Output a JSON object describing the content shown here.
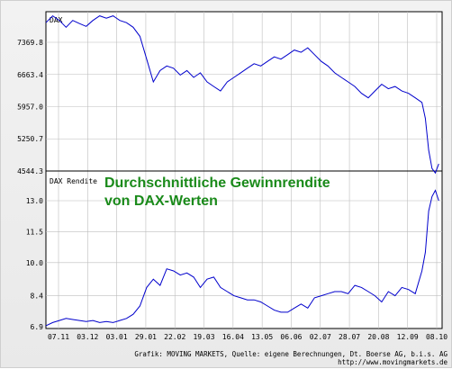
{
  "chart_data": {
    "type": "line",
    "panels": [
      {
        "name": "DAX",
        "label": "DAX",
        "y_ticks": [
          "7369.8",
          "6663.4",
          "5957.0",
          "5250.7",
          "4544.3"
        ],
        "ylim": [
          4544.3,
          8000
        ],
        "series": [
          {
            "name": "DAX",
            "color": "#0000cc",
            "points": [
              [
                0,
                7800
              ],
              [
                2,
                7950
              ],
              [
                4,
                7850
              ],
              [
                6,
                7700
              ],
              [
                8,
                7850
              ],
              [
                10,
                7780
              ],
              [
                12,
                7720
              ],
              [
                14,
                7850
              ],
              [
                16,
                7950
              ],
              [
                18,
                7900
              ],
              [
                20,
                7950
              ],
              [
                22,
                7850
              ],
              [
                24,
                7800
              ],
              [
                26,
                7700
              ],
              [
                28,
                7500
              ],
              [
                30,
                7000
              ],
              [
                32,
                6500
              ],
              [
                34,
                6750
              ],
              [
                36,
                6850
              ],
              [
                38,
                6800
              ],
              [
                40,
                6650
              ],
              [
                42,
                6750
              ],
              [
                44,
                6600
              ],
              [
                46,
                6700
              ],
              [
                48,
                6500
              ],
              [
                50,
                6400
              ],
              [
                52,
                6300
              ],
              [
                54,
                6500
              ],
              [
                56,
                6600
              ],
              [
                58,
                6700
              ],
              [
                60,
                6800
              ],
              [
                62,
                6900
              ],
              [
                64,
                6850
              ],
              [
                66,
                6950
              ],
              [
                68,
                7050
              ],
              [
                70,
                7000
              ],
              [
                72,
                7100
              ],
              [
                74,
                7200
              ],
              [
                76,
                7150
              ],
              [
                78,
                7250
              ],
              [
                80,
                7100
              ],
              [
                82,
                6950
              ],
              [
                84,
                6850
              ],
              [
                86,
                6700
              ],
              [
                88,
                6600
              ],
              [
                90,
                6500
              ],
              [
                92,
                6400
              ],
              [
                94,
                6250
              ],
              [
                96,
                6150
              ],
              [
                98,
                6300
              ],
              [
                100,
                6450
              ],
              [
                102,
                6350
              ],
              [
                104,
                6400
              ],
              [
                106,
                6300
              ],
              [
                108,
                6250
              ],
              [
                110,
                6150
              ],
              [
                112,
                6050
              ],
              [
                113,
                5700
              ],
              [
                114,
                5000
              ],
              [
                115,
                4600
              ],
              [
                116,
                4500
              ],
              [
                117,
                4700
              ]
            ]
          }
        ]
      },
      {
        "name": "DAX Rendite",
        "label": "DAX Rendite",
        "y_ticks": [
          "13.0",
          "11.5",
          "10.0",
          "8.4",
          "6.9"
        ],
        "ylim": [
          6.9,
          14.3
        ],
        "series": [
          {
            "name": "DAX Rendite",
            "color": "#0000cc",
            "points": [
              [
                0,
                6.95
              ],
              [
                2,
                7.1
              ],
              [
                4,
                7.2
              ],
              [
                6,
                7.3
              ],
              [
                8,
                7.25
              ],
              [
                10,
                7.2
              ],
              [
                12,
                7.15
              ],
              [
                14,
                7.2
              ],
              [
                16,
                7.1
              ],
              [
                18,
                7.15
              ],
              [
                20,
                7.1
              ],
              [
                22,
                7.2
              ],
              [
                24,
                7.3
              ],
              [
                26,
                7.5
              ],
              [
                28,
                7.9
              ],
              [
                30,
                8.8
              ],
              [
                32,
                9.2
              ],
              [
                34,
                8.9
              ],
              [
                36,
                9.7
              ],
              [
                38,
                9.6
              ],
              [
                40,
                9.4
              ],
              [
                42,
                9.5
              ],
              [
                44,
                9.3
              ],
              [
                46,
                8.8
              ],
              [
                48,
                9.2
              ],
              [
                50,
                9.3
              ],
              [
                52,
                8.8
              ],
              [
                54,
                8.6
              ],
              [
                56,
                8.4
              ],
              [
                58,
                8.3
              ],
              [
                60,
                8.2
              ],
              [
                62,
                8.2
              ],
              [
                64,
                8.1
              ],
              [
                66,
                7.9
              ],
              [
                68,
                7.7
              ],
              [
                70,
                7.6
              ],
              [
                72,
                7.6
              ],
              [
                74,
                7.8
              ],
              [
                76,
                8.0
              ],
              [
                78,
                7.8
              ],
              [
                80,
                8.3
              ],
              [
                82,
                8.4
              ],
              [
                84,
                8.5
              ],
              [
                86,
                8.6
              ],
              [
                88,
                8.6
              ],
              [
                90,
                8.5
              ],
              [
                92,
                8.9
              ],
              [
                94,
                8.8
              ],
              [
                96,
                8.6
              ],
              [
                98,
                8.4
              ],
              [
                100,
                8.1
              ],
              [
                102,
                8.6
              ],
              [
                104,
                8.4
              ],
              [
                106,
                8.8
              ],
              [
                108,
                8.7
              ],
              [
                110,
                8.5
              ],
              [
                112,
                9.6
              ],
              [
                113,
                10.5
              ],
              [
                114,
                12.5
              ],
              [
                115,
                13.2
              ],
              [
                116,
                13.5
              ],
              [
                117,
                13.0
              ]
            ]
          }
        ]
      }
    ],
    "x_ticks": [
      "07.11",
      "03.12",
      "03.01",
      "29.01",
      "22.02",
      "19.03",
      "16.04",
      "13.05",
      "06.06",
      "02.07",
      "28.07",
      "20.08",
      "12.09",
      "08.10"
    ],
    "xlim": [
      0,
      118
    ],
    "overlay_title": [
      "Durchschnittliche Gewinnrendite",
      "von DAX-Werten"
    ],
    "credit": "Grafik: MOVING MARKETS, Quelle: eigene Berechnungen, Dt. Boerse AG, b.i.s. AG",
    "url": "http://www.movingmarkets.de",
    "colors": {
      "line": "#0000cc",
      "title": "#1a8a1a",
      "grid": "#bdbdbd",
      "plot_bg": "#ffffff"
    },
    "grid": true
  }
}
